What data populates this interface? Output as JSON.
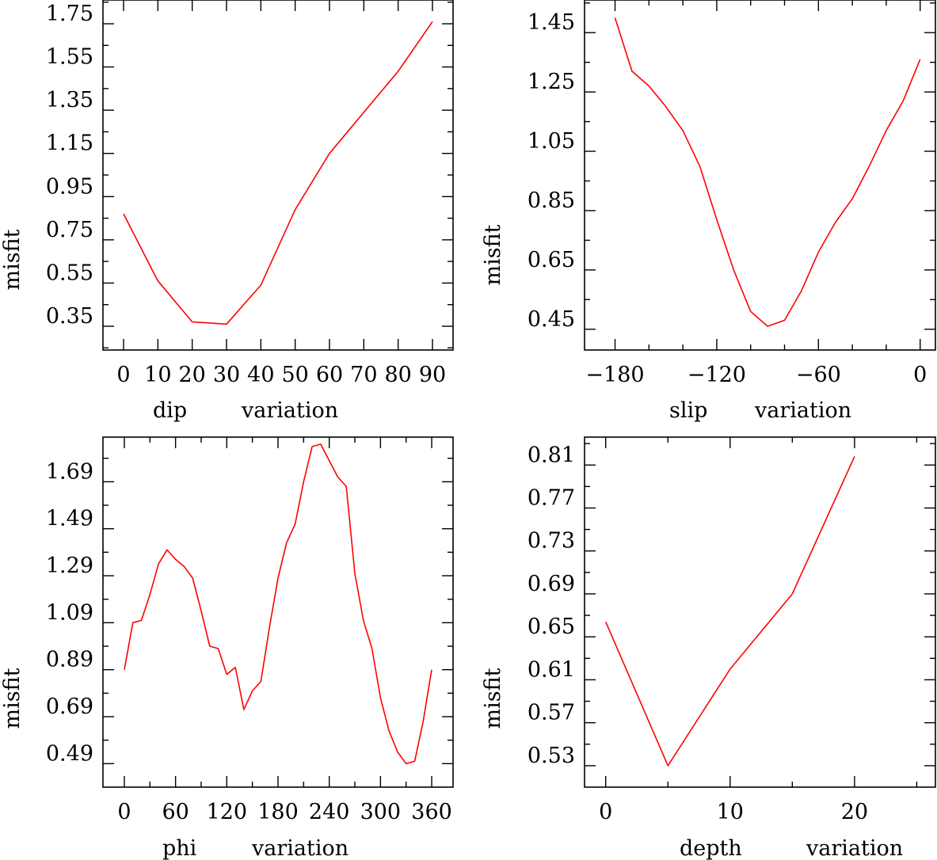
{
  "chart_data": [
    {
      "type": "line",
      "name": "dip",
      "xlabel_parts": [
        "dip",
        "variation"
      ],
      "ylabel": "misfit",
      "xlim": [
        -6,
        96
      ],
      "ylim": [
        0.24,
        1.86
      ],
      "xticks": [
        0,
        10,
        20,
        30,
        40,
        50,
        60,
        70,
        80,
        90
      ],
      "xtick_labels": [
        "0",
        "10",
        "20",
        "30",
        "40",
        "50",
        "60",
        "70",
        "80",
        "90"
      ],
      "xminor": [],
      "yticks": [
        0.35,
        0.55,
        0.75,
        0.95,
        1.15,
        1.35,
        1.55,
        1.75
      ],
      "ytick_labels": [
        "0.35",
        "0.55",
        "0.75",
        "0.95",
        "1.15",
        "1.35",
        "1.55",
        "1.75"
      ],
      "yminor": [
        0.25,
        0.45,
        0.65,
        0.85,
        1.05,
        1.25,
        1.45,
        1.65,
        1.85
      ],
      "x": [
        0,
        10,
        20,
        30,
        40,
        50,
        60,
        70,
        80,
        90
      ],
      "y": [
        0.87,
        0.56,
        0.37,
        0.36,
        0.54,
        0.89,
        1.15,
        1.34,
        1.53,
        1.76
      ]
    },
    {
      "type": "line",
      "name": "slip",
      "xlabel_parts": [
        "slip",
        "variation"
      ],
      "ylabel": "misfit",
      "xlim": [
        -198,
        9
      ],
      "ylim": [
        0.38,
        1.56
      ],
      "xticks": [
        -180,
        -120,
        -60,
        0
      ],
      "xtick_labels": [
        "−180",
        "−120",
        "−60",
        "0"
      ],
      "xminor": [
        -160,
        -140,
        -100,
        -80,
        -40,
        -20
      ],
      "yticks": [
        0.45,
        0.65,
        0.85,
        1.05,
        1.25,
        1.45
      ],
      "ytick_labels": [
        "0.45",
        "0.65",
        "0.85",
        "1.05",
        "1.25",
        "1.45"
      ],
      "yminor": [
        0.55,
        0.75,
        0.95,
        1.15,
        1.35,
        1.55
      ],
      "x": [
        -180,
        -170,
        -160,
        -150,
        -140,
        -130,
        -120,
        -110,
        -100,
        -90,
        -80,
        -70,
        -60,
        -50,
        -40,
        -30,
        -20,
        -10,
        0
      ],
      "y": [
        1.5,
        1.32,
        1.27,
        1.2,
        1.12,
        1.0,
        0.82,
        0.65,
        0.51,
        0.46,
        0.48,
        0.58,
        0.71,
        0.81,
        0.89,
        1.0,
        1.12,
        1.22,
        1.36
      ]
    },
    {
      "type": "line",
      "name": "phi",
      "xlabel_parts": [
        "phi",
        "variation"
      ],
      "ylabel": "misfit",
      "xlim": [
        -25,
        385
      ],
      "ylim": [
        0.39,
        1.88
      ],
      "xticks": [
        0,
        60,
        120,
        180,
        240,
        300,
        360
      ],
      "xtick_labels": [
        "0",
        "60",
        "120",
        "180",
        "240",
        "300",
        "360"
      ],
      "xminor": [
        30,
        90,
        150,
        210,
        270,
        330
      ],
      "yticks": [
        0.49,
        0.69,
        0.89,
        1.09,
        1.29,
        1.49,
        1.69
      ],
      "ytick_labels": [
        "0.49",
        "0.69",
        "0.89",
        "1.09",
        "1.29",
        "1.49",
        "1.69"
      ],
      "yminor": [
        0.59,
        0.79,
        0.99,
        1.19,
        1.39,
        1.59,
        1.79
      ],
      "x": [
        0,
        10,
        20,
        30,
        40,
        50,
        60,
        70,
        80,
        90,
        100,
        110,
        120,
        130,
        140,
        150,
        160,
        170,
        180,
        190,
        200,
        210,
        220,
        230,
        240,
        250,
        260,
        270,
        280,
        290,
        300,
        310,
        320,
        330,
        340,
        350,
        360
      ],
      "y": [
        0.89,
        1.09,
        1.1,
        1.21,
        1.34,
        1.4,
        1.36,
        1.33,
        1.28,
        1.14,
        0.99,
        0.98,
        0.87,
        0.9,
        0.72,
        0.8,
        0.84,
        1.07,
        1.28,
        1.43,
        1.51,
        1.69,
        1.84,
        1.85,
        1.78,
        1.71,
        1.67,
        1.3,
        1.1,
        0.98,
        0.77,
        0.63,
        0.54,
        0.49,
        0.5,
        0.67,
        0.89
      ]
    },
    {
      "type": "line",
      "name": "depth",
      "xlabel_parts": [
        "depth",
        "variation"
      ],
      "ylabel": "misfit",
      "xlim": [
        -1.7,
        26.5
      ],
      "ylim": [
        0.51,
        0.836
      ],
      "xticks": [
        0,
        10,
        20
      ],
      "xtick_labels": [
        "0",
        "10",
        "20"
      ],
      "xminor": [
        5,
        15,
        25
      ],
      "yticks": [
        0.53,
        0.57,
        0.61,
        0.65,
        0.69,
        0.73,
        0.77,
        0.81
      ],
      "ytick_labels": [
        "0.53",
        "0.57",
        "0.61",
        "0.65",
        "0.69",
        "0.73",
        "0.77",
        "0.81"
      ],
      "yminor": [
        0.55,
        0.59,
        0.63,
        0.67,
        0.71,
        0.75,
        0.79,
        0.83
      ],
      "x": [
        0,
        5,
        10,
        15,
        20
      ],
      "y": [
        0.664,
        0.53,
        0.62,
        0.69,
        0.818
      ]
    }
  ]
}
